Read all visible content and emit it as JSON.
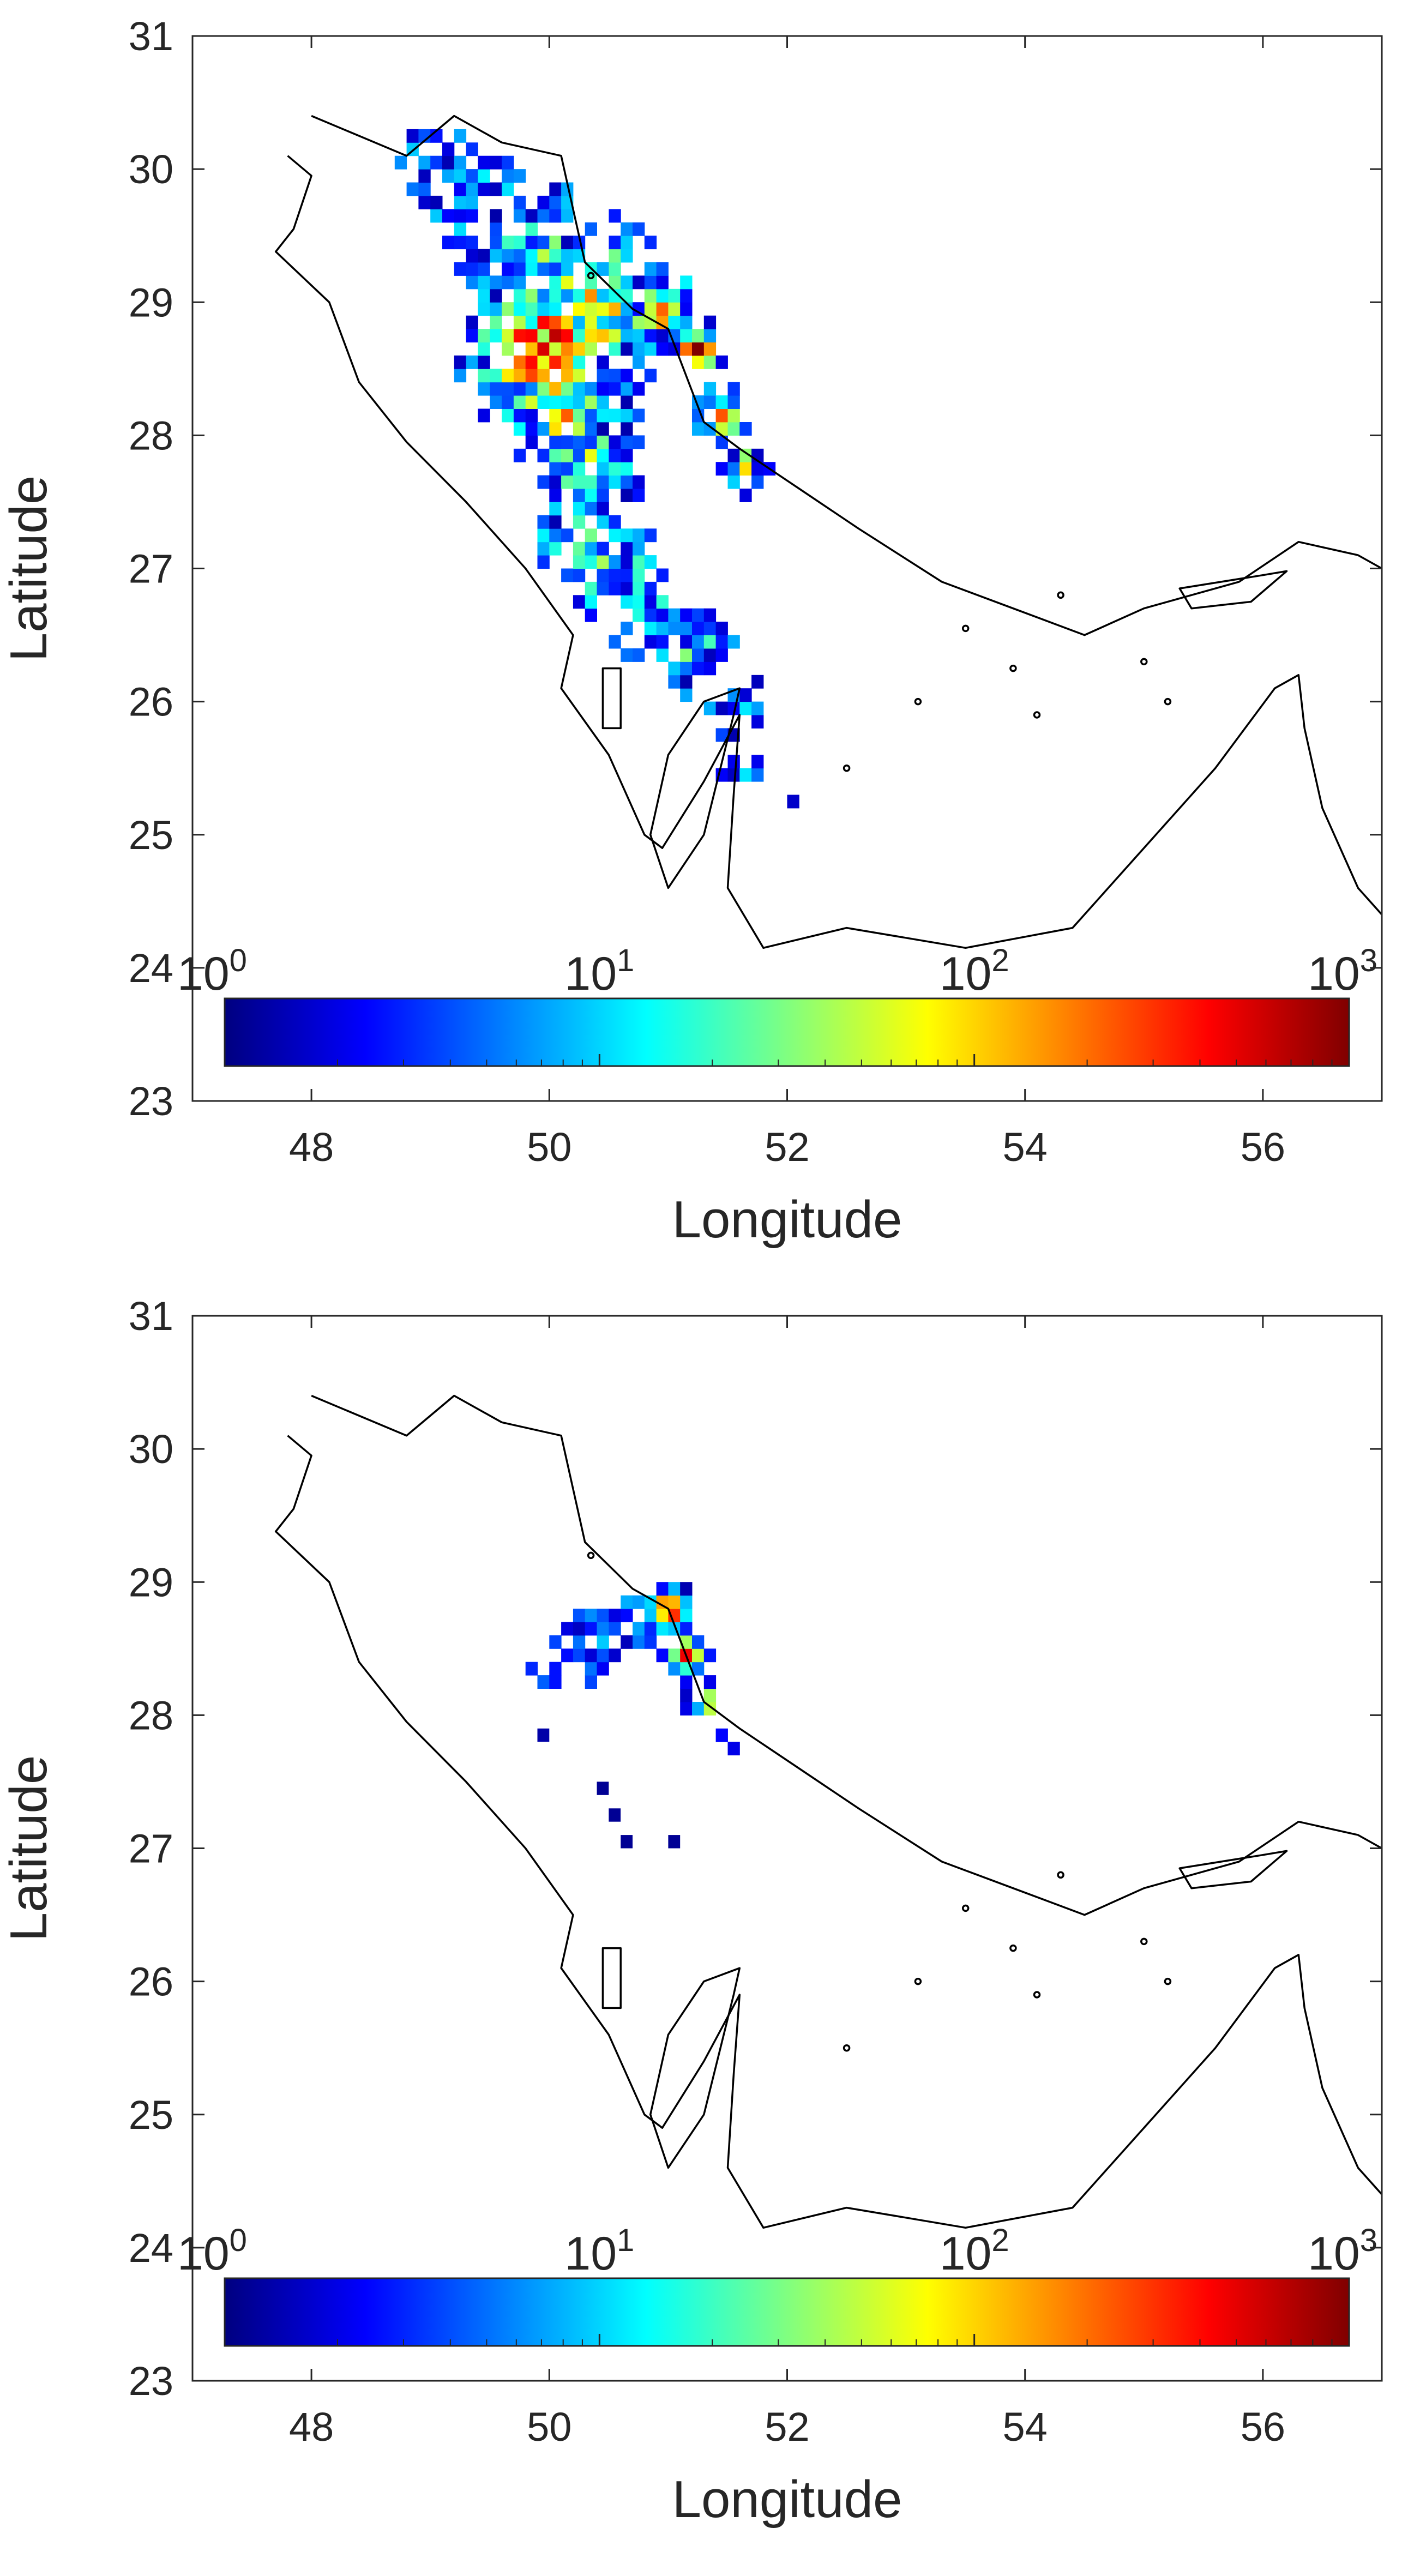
{
  "chart_data": [
    {
      "type": "heatmap",
      "title": "",
      "xlabel": "Longitude",
      "ylabel": "Latitude",
      "xlim": [
        47,
        57
      ],
      "ylim": [
        23,
        31
      ],
      "x_ticks": [
        "48",
        "50",
        "52",
        "54",
        "56"
      ],
      "y_ticks": [
        "23",
        "24",
        "25",
        "26",
        "27",
        "28",
        "29",
        "30",
        "31"
      ],
      "grid": false,
      "colormap": "jet",
      "color_scale": "log",
      "colorbar": {
        "location": "inside-bottom",
        "orientation": "horizontal",
        "range": [
          1,
          1000
        ],
        "labels": [
          {
            "base": "10",
            "exp": "0"
          },
          {
            "base": "10",
            "exp": "1"
          },
          {
            "base": "10",
            "exp": "2"
          },
          {
            "base": "10",
            "exp": "3"
          }
        ]
      },
      "cell_size_deg": 0.1,
      "track": [
        [
          49.0,
          30.0,
          0.35,
          0.12
        ],
        [
          49.4,
          29.6,
          0.42,
          0.2
        ],
        [
          49.9,
          29.2,
          0.48,
          0.35
        ],
        [
          50.3,
          28.9,
          0.5,
          0.55
        ],
        [
          49.9,
          28.6,
          0.45,
          0.8
        ],
        [
          50.1,
          28.2,
          0.4,
          0.6
        ],
        [
          50.3,
          27.7,
          0.3,
          0.48
        ],
        [
          50.2,
          27.2,
          0.28,
          0.42
        ],
        [
          50.5,
          26.9,
          0.3,
          0.38
        ],
        [
          50.8,
          26.6,
          0.28,
          0.35
        ],
        [
          51.2,
          26.3,
          0.25,
          0.32
        ],
        [
          51.5,
          25.9,
          0.22,
          0.28
        ],
        [
          51.6,
          25.4,
          0.2,
          0.15
        ],
        [
          51.9,
          25.1,
          0.18,
          0.1
        ],
        [
          52.4,
          24.9,
          0.14,
          0.06
        ],
        [
          50.9,
          28.9,
          0.22,
          0.65
        ],
        [
          51.2,
          28.6,
          0.14,
          0.95
        ],
        [
          51.4,
          28.1,
          0.16,
          0.75
        ],
        [
          51.6,
          27.7,
          0.14,
          0.55
        ]
      ],
      "track_seed": 7,
      "track_scatter": 0.25
    },
    {
      "type": "heatmap",
      "title": "",
      "xlabel": "Longitude",
      "ylabel": "Latitude",
      "xlim": [
        47,
        57
      ],
      "ylim": [
        23,
        31
      ],
      "x_ticks": [
        "48",
        "50",
        "52",
        "54",
        "56"
      ],
      "y_ticks": [
        "23",
        "24",
        "25",
        "26",
        "27",
        "28",
        "29",
        "30",
        "31"
      ],
      "grid": false,
      "colormap": "jet",
      "color_scale": "log",
      "colorbar": {
        "location": "inside-bottom",
        "orientation": "horizontal",
        "range": [
          1,
          1000
        ],
        "labels": [
          {
            "base": "10",
            "exp": "0"
          },
          {
            "base": "10",
            "exp": "1"
          },
          {
            "base": "10",
            "exp": "2"
          },
          {
            "base": "10",
            "exp": "3"
          }
        ]
      },
      "cell_size_deg": 0.1,
      "track": [
        [
          50.95,
          28.75,
          0.14,
          1.0
        ],
        [
          51.1,
          28.4,
          0.12,
          0.95
        ],
        [
          51.25,
          28.05,
          0.1,
          0.7
        ],
        [
          51.4,
          27.7,
          0.09,
          0.45
        ],
        [
          50.3,
          28.5,
          0.25,
          0.22
        ],
        [
          49.9,
          28.2,
          0.18,
          0.12
        ],
        [
          50.7,
          28.7,
          0.2,
          0.3
        ]
      ],
      "track_seed": 19,
      "track_scatter": 0.15,
      "extra_cells": [
        [
          50.4,
          27.4,
          0.02
        ],
        [
          50.5,
          27.2,
          0.02
        ],
        [
          50.6,
          27.0,
          0.02
        ],
        [
          51.0,
          27.0,
          0.02
        ],
        [
          49.9,
          27.8,
          0.04
        ]
      ]
    }
  ],
  "coastline": {
    "color": "#000000",
    "outline": [
      [
        47.8,
        30.1
      ],
      [
        48.0,
        29.95
      ],
      [
        47.85,
        29.55
      ],
      [
        47.7,
        29.38
      ],
      [
        48.15,
        29.0
      ],
      [
        48.4,
        28.4
      ],
      [
        48.8,
        27.95
      ],
      [
        49.3,
        27.5
      ],
      [
        49.8,
        27.0
      ],
      [
        50.2,
        26.5
      ],
      [
        50.1,
        26.1
      ],
      [
        50.5,
        25.6
      ],
      [
        50.8,
        25.0
      ],
      [
        50.95,
        24.9
      ],
      [
        51.3,
        25.4
      ],
      [
        51.6,
        25.9
      ],
      [
        51.55,
        25.3
      ],
      [
        51.5,
        24.6
      ],
      [
        51.8,
        24.15
      ],
      [
        52.5,
        24.3
      ],
      [
        53.5,
        24.15
      ],
      [
        54.4,
        24.3
      ],
      [
        55.0,
        24.9
      ],
      [
        55.6,
        25.5
      ],
      [
        56.1,
        26.1
      ],
      [
        56.3,
        26.2
      ],
      [
        56.35,
        25.8
      ],
      [
        56.5,
        25.2
      ],
      [
        56.8,
        24.6
      ],
      [
        57.0,
        24.4
      ]
    ],
    "north_coast": [
      [
        48.0,
        30.4
      ],
      [
        48.8,
        30.1
      ],
      [
        49.2,
        30.4
      ],
      [
        49.6,
        30.2
      ],
      [
        50.1,
        30.1
      ],
      [
        50.3,
        29.3
      ],
      [
        50.7,
        28.95
      ],
      [
        51.0,
        28.8
      ],
      [
        51.3,
        28.1
      ],
      [
        51.6,
        27.9
      ],
      [
        52.1,
        27.6
      ],
      [
        52.6,
        27.3
      ],
      [
        53.3,
        26.9
      ],
      [
        53.9,
        26.7
      ],
      [
        54.5,
        26.5
      ],
      [
        55.0,
        26.7
      ],
      [
        55.8,
        26.9
      ],
      [
        56.3,
        27.2
      ],
      [
        56.8,
        27.1
      ],
      [
        57.0,
        27.0
      ]
    ],
    "qatar": [
      [
        51.0,
        24.6
      ],
      [
        51.3,
        25.0
      ],
      [
        51.55,
        25.9
      ],
      [
        51.6,
        26.1
      ],
      [
        51.3,
        26.0
      ],
      [
        51.0,
        25.6
      ],
      [
        50.85,
        25.0
      ],
      [
        51.0,
        24.6
      ]
    ],
    "bahrain": [
      [
        50.45,
        26.25
      ],
      [
        50.6,
        26.25
      ],
      [
        50.6,
        25.8
      ],
      [
        50.45,
        25.8
      ],
      [
        50.45,
        26.25
      ]
    ],
    "qeshm": [
      [
        55.3,
        26.85
      ],
      [
        56.0,
        26.95
      ],
      [
        56.2,
        26.98
      ],
      [
        55.9,
        26.75
      ],
      [
        55.4,
        26.7
      ],
      [
        55.3,
        26.85
      ]
    ],
    "islands": [
      [
        53.9,
        26.25
      ],
      [
        53.1,
        26.0
      ],
      [
        52.5,
        25.5
      ],
      [
        54.1,
        25.9
      ],
      [
        55.0,
        26.3
      ],
      [
        54.3,
        26.8
      ],
      [
        50.35,
        29.2
      ],
      [
        53.5,
        26.55
      ],
      [
        55.2,
        26.0
      ]
    ]
  }
}
